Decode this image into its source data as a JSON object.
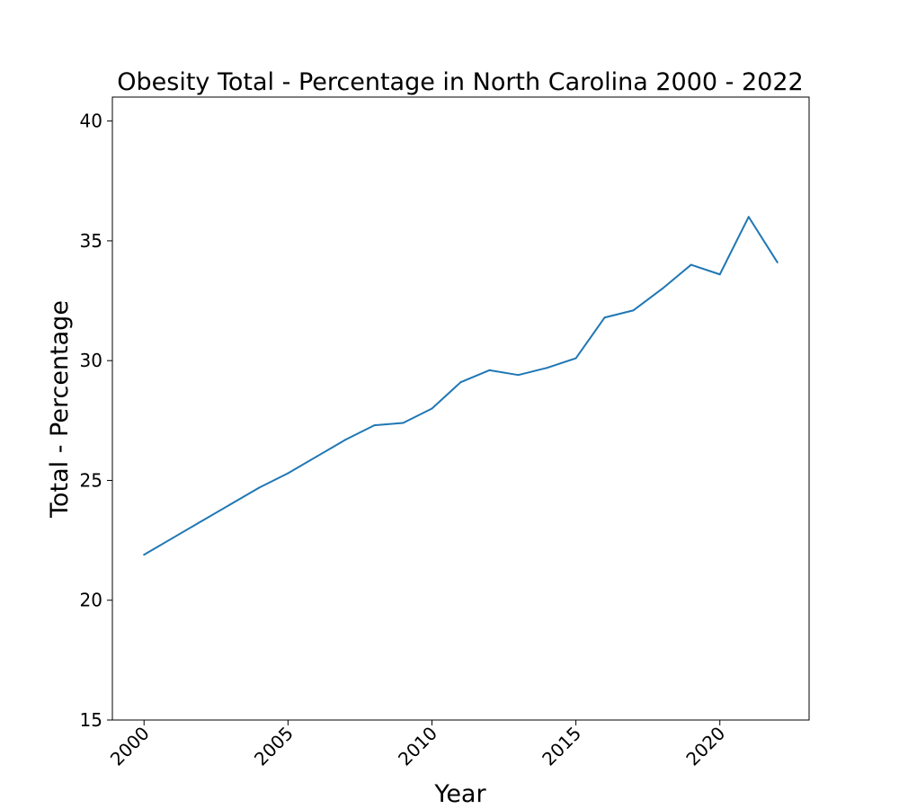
{
  "chart_data": {
    "type": "line",
    "title": "Obesity Total - Percentage in North Carolina 2000 - 2022",
    "xlabel": "Year",
    "ylabel": "Total - Percentage",
    "xlim": [
      1998.9,
      2023.1
    ],
    "ylim": [
      15,
      41
    ],
    "x_ticks": [
      "2000",
      "2005",
      "2010",
      "2015",
      "2020"
    ],
    "y_ticks": [
      "15",
      "20",
      "25",
      "30",
      "35",
      "40"
    ],
    "grid": false,
    "legend": "none",
    "series": [
      {
        "color": "#1f77b4",
        "x": [
          2000,
          2001,
          2002,
          2003,
          2004,
          2005,
          2006,
          2007,
          2008,
          2009,
          2010,
          2011,
          2012,
          2013,
          2014,
          2015,
          2016,
          2017,
          2018,
          2019,
          2020,
          2021,
          2022
        ],
        "values": [
          21.9,
          22.6,
          23.3,
          24.0,
          24.7,
          25.3,
          26.0,
          26.7,
          27.3,
          27.4,
          28.0,
          29.1,
          29.6,
          29.4,
          29.7,
          30.1,
          31.8,
          32.1,
          33.0,
          34.0,
          33.6,
          36.0,
          34.1
        ]
      }
    ]
  }
}
